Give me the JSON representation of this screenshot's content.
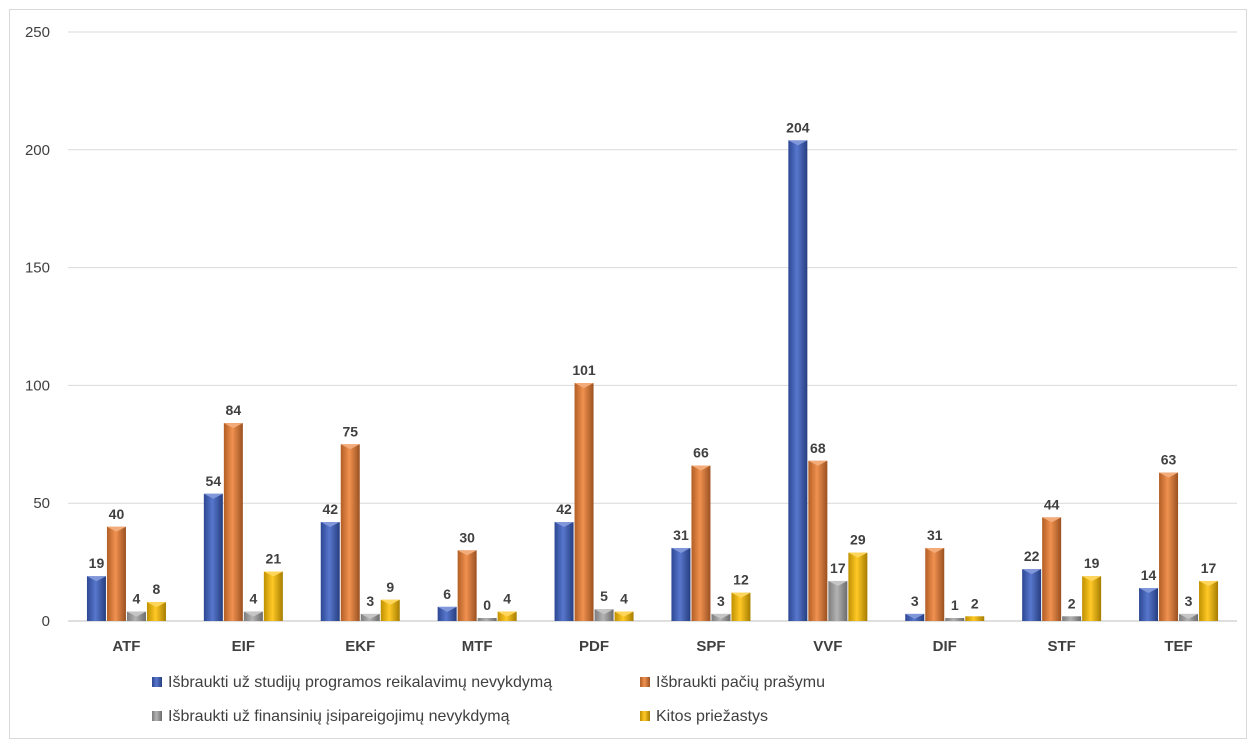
{
  "chart_data": {
    "type": "bar",
    "categories": [
      "ATF",
      "EIF",
      "EKF",
      "MTF",
      "PDF",
      "SPF",
      "VVF",
      "DIF",
      "STF",
      "TEF"
    ],
    "series": [
      {
        "name": "Išbraukti už studijų programos reikalavimų nevykdymą",
        "color": "#3b5fc4",
        "values": [
          19,
          54,
          42,
          6,
          42,
          31,
          204,
          3,
          22,
          14
        ]
      },
      {
        "name": "Išbraukti pačių prašymu",
        "color": "#ed7d31",
        "values": [
          40,
          84,
          75,
          30,
          101,
          66,
          68,
          31,
          44,
          63
        ]
      },
      {
        "name": "Išbraukti už finansinių įsipareigojimų nevykdymą",
        "color": "#a5a5a5",
        "values": [
          4,
          4,
          3,
          0,
          5,
          3,
          17,
          1,
          2,
          3
        ]
      },
      {
        "name": "Kitos priežastys",
        "color": "#ffc000",
        "values": [
          8,
          21,
          9,
          4,
          4,
          12,
          29,
          2,
          19,
          17
        ]
      }
    ],
    "ylim": [
      0,
      250
    ],
    "yticks": [
      "0",
      "50",
      "100",
      "150",
      "200",
      "250"
    ],
    "grid": true,
    "legend_position": "bottom"
  }
}
